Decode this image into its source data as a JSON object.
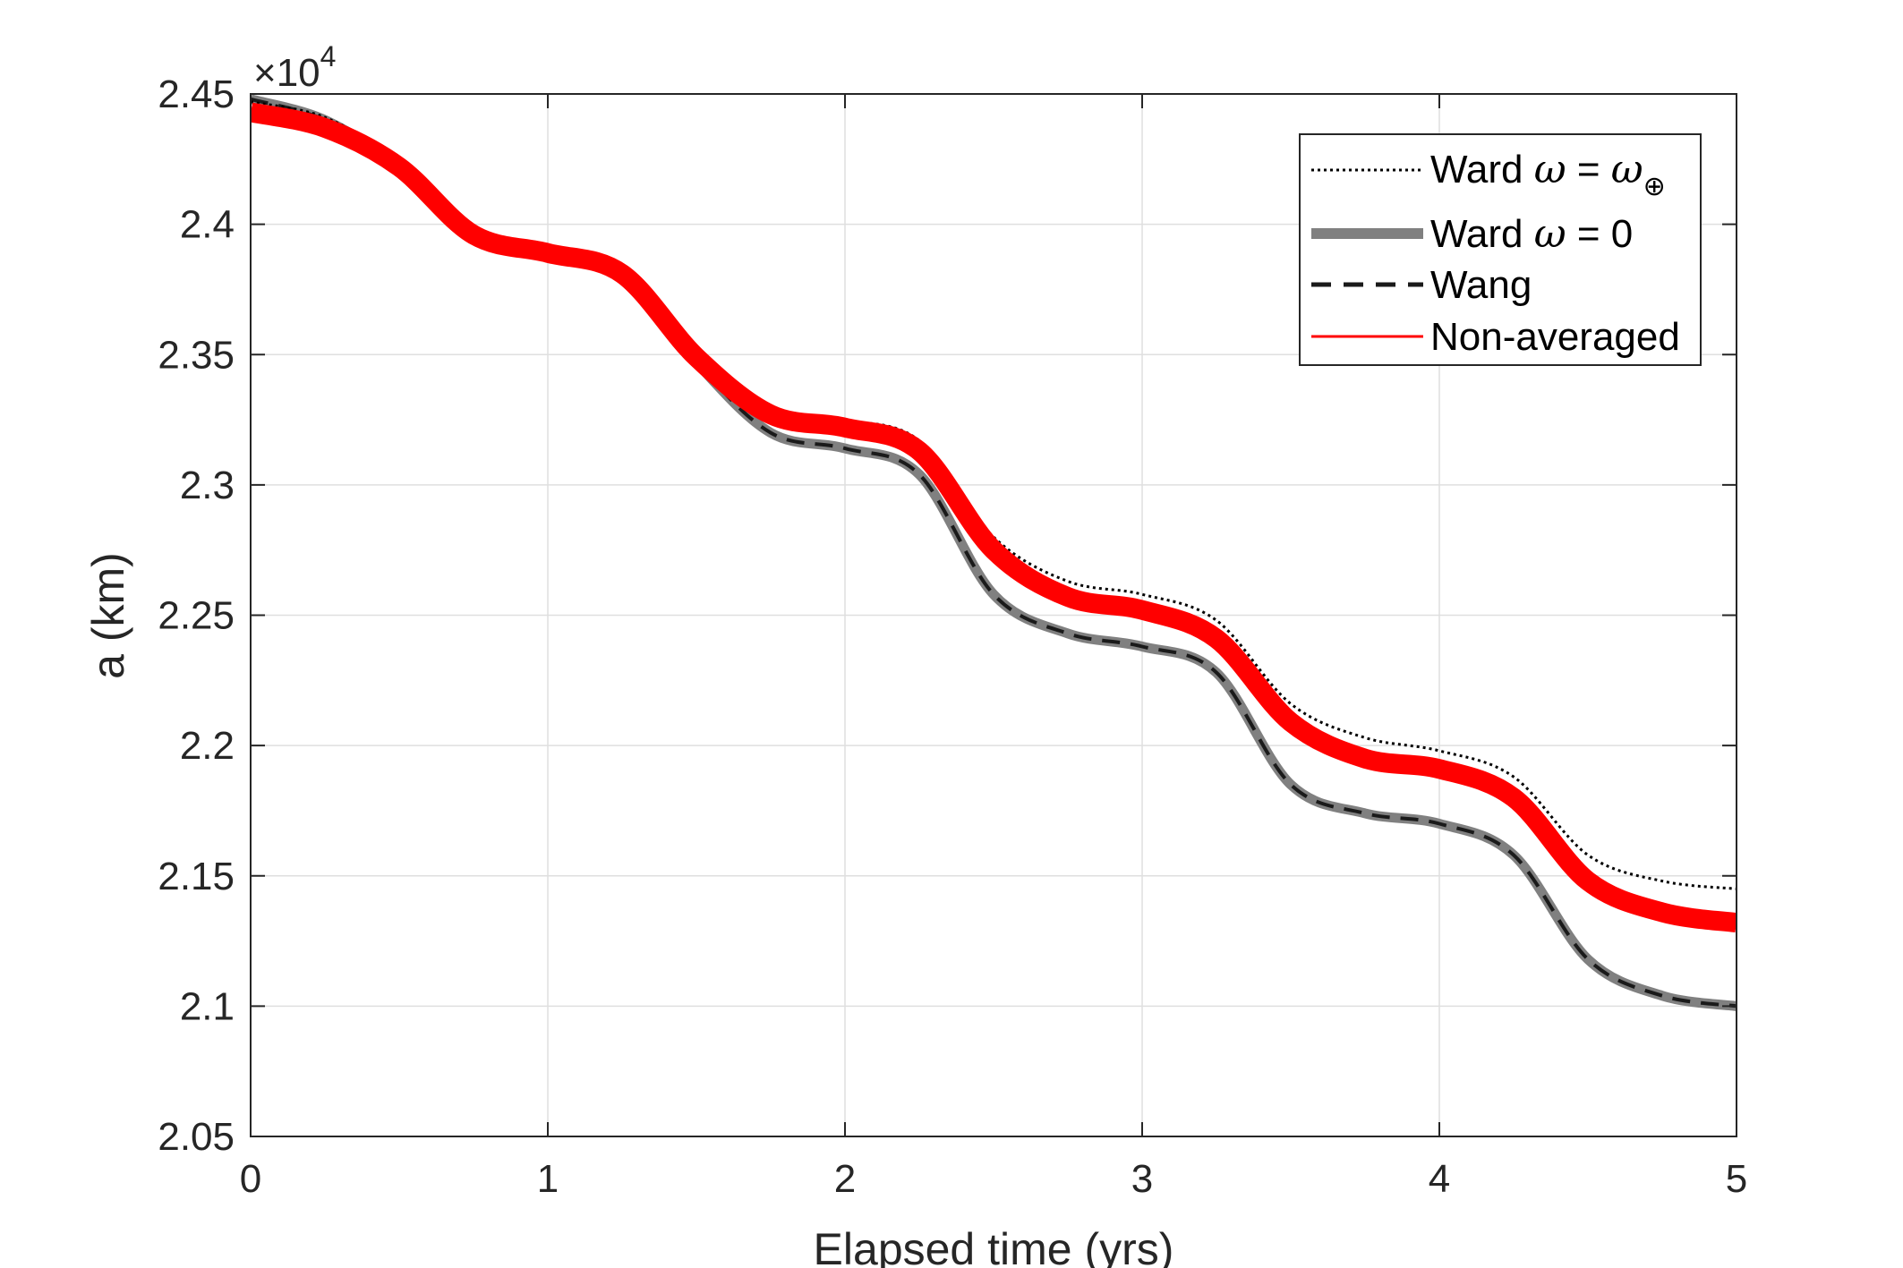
{
  "chart_data": {
    "type": "line",
    "xlabel": "Elapsed time (yrs)",
    "ylabel": "a (km)",
    "exponent_label": "×10",
    "exponent_power": "4",
    "xlim": [
      0,
      5
    ],
    "ylim": [
      2.05,
      2.45
    ],
    "x_ticks": [
      0,
      1,
      2,
      3,
      4,
      5
    ],
    "x_tick_labels": [
      "0",
      "1",
      "2",
      "3",
      "4",
      "5"
    ],
    "y_ticks": [
      2.05,
      2.1,
      2.15,
      2.2,
      2.25,
      2.3,
      2.35,
      2.4,
      2.45
    ],
    "y_tick_labels": [
      "2.05",
      "2.1",
      "2.15",
      "2.2",
      "2.25",
      "2.3",
      "2.35",
      "2.4",
      "2.45"
    ],
    "grid": true,
    "legend_position": "top-right",
    "series": [
      {
        "name": "Ward ω = ω⊕",
        "legend_prefix": "Ward ",
        "legend_math_1": "ω",
        "legend_mid": " = ",
        "legend_math_2": "ω",
        "legend_sub": "⊕",
        "style": "dotted",
        "color": "#000000",
        "x": [
          0,
          0.25,
          0.5,
          0.75,
          1,
          1.25,
          1.5,
          1.75,
          2,
          2.25,
          2.5,
          2.75,
          3,
          3.25,
          3.5,
          3.75,
          4,
          4.25,
          4.5,
          4.75,
          5
        ],
        "y": [
          2.447,
          2.441,
          2.424,
          2.397,
          2.391,
          2.384,
          2.351,
          2.33,
          2.325,
          2.317,
          2.28,
          2.263,
          2.258,
          2.248,
          2.216,
          2.203,
          2.198,
          2.188,
          2.158,
          2.148,
          2.145
        ]
      },
      {
        "name": "Ward ω = 0",
        "legend_prefix": "Ward ",
        "legend_math_1": "ω",
        "legend_mid": " = 0",
        "style": "solid-thick",
        "color": "#808080",
        "x": [
          0,
          0.25,
          0.5,
          0.75,
          1,
          1.25,
          1.5,
          1.75,
          2,
          2.25,
          2.5,
          2.75,
          3,
          3.25,
          3.5,
          3.75,
          4,
          4.25,
          4.5,
          4.75,
          5
        ],
        "y": [
          2.448,
          2.44,
          2.422,
          2.396,
          2.39,
          2.382,
          2.347,
          2.32,
          2.314,
          2.304,
          2.258,
          2.243,
          2.238,
          2.228,
          2.185,
          2.174,
          2.17,
          2.158,
          2.118,
          2.104,
          2.1
        ]
      },
      {
        "name": "Wang",
        "style": "dashed",
        "color": "#1a1a1a",
        "x": [
          0,
          0.25,
          0.5,
          0.75,
          1,
          1.25,
          1.5,
          1.75,
          2,
          2.25,
          2.5,
          2.75,
          3,
          3.25,
          3.5,
          3.75,
          4,
          4.25,
          4.5,
          4.75,
          5
        ],
        "y": [
          2.448,
          2.44,
          2.422,
          2.396,
          2.39,
          2.382,
          2.347,
          2.32,
          2.314,
          2.304,
          2.258,
          2.243,
          2.238,
          2.228,
          2.185,
          2.174,
          2.17,
          2.158,
          2.118,
          2.104,
          2.1
        ]
      },
      {
        "name": "Non-averaged",
        "style": "band",
        "color": "#ff0000",
        "x": [
          0,
          0.25,
          0.5,
          0.75,
          1,
          1.25,
          1.5,
          1.75,
          2,
          2.25,
          2.5,
          2.75,
          3,
          3.25,
          3.5,
          3.75,
          4,
          4.25,
          4.5,
          4.75,
          5
        ],
        "y": [
          2.443,
          2.437,
          2.422,
          2.396,
          2.389,
          2.381,
          2.349,
          2.327,
          2.322,
          2.313,
          2.275,
          2.257,
          2.252,
          2.241,
          2.209,
          2.195,
          2.191,
          2.18,
          2.148,
          2.136,
          2.132
        ]
      }
    ]
  }
}
